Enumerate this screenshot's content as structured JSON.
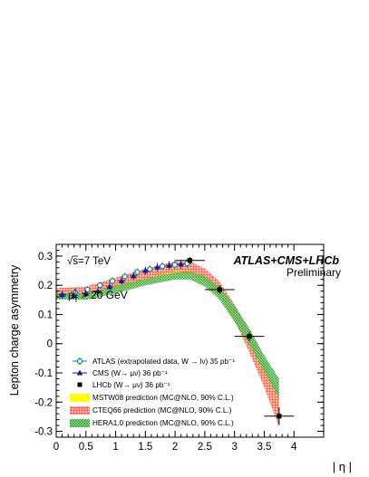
{
  "chart_data": {
    "type": "scatter",
    "title": "ATLAS+CMS+LHCb",
    "subtitle": "Preliminary",
    "energy_label": "√s=7 TeV",
    "cut_label": "p_T^l > 20 GeV",
    "cut_parts": {
      "p": "p",
      "sup": "l",
      "sub": "T",
      "rest": " > 20 GeV"
    },
    "ylabel": "Lepton charge asymmetry",
    "xlabel": "| η |",
    "xlim": [
      0,
      4.5
    ],
    "ylim": [
      -0.32,
      0.34
    ],
    "xticks": [
      "0",
      "0.5",
      "1",
      "1.5",
      "2",
      "2.5",
      "3",
      "3.5",
      "4"
    ],
    "xtick_values": [
      0,
      0.5,
      1,
      1.5,
      2,
      2.5,
      3,
      3.5,
      4
    ],
    "yticks": [
      "0.3",
      "0.2",
      "0.1",
      "0",
      "-0.1",
      "-0.2",
      "-0.3"
    ],
    "ytick_values": [
      0.3,
      0.2,
      0.1,
      0,
      -0.1,
      -0.2,
      -0.3
    ],
    "grid": false,
    "legend_position": "bottom-left",
    "colors": {
      "atlas": "#0f8a87",
      "cms": "#1b1b8f",
      "lhcb": "#000000",
      "mstw": "#ffff00",
      "cteq": "#ff3a2a",
      "hera": "#22aa22"
    },
    "series": [
      {
        "name": "ATLAS (extrapolated data, W → lν) 35 pb⁻¹",
        "marker": "open-circle",
        "x": [
          0.105,
          0.315,
          0.525,
          0.735,
          0.945,
          1.155,
          1.365,
          1.575,
          1.785,
          1.995,
          2.205
        ],
        "y": [
          0.165,
          0.175,
          0.185,
          0.2,
          0.215,
          0.23,
          0.245,
          0.255,
          0.265,
          0.27,
          0.275
        ],
        "err": [
          0.012,
          0.012,
          0.012,
          0.012,
          0.013,
          0.013,
          0.013,
          0.014,
          0.014,
          0.015,
          0.016
        ]
      },
      {
        "name": "CMS (W→ μν) 36 pb⁻¹",
        "marker": "filled-triangle",
        "x": [
          0.1,
          0.3,
          0.5,
          0.7,
          0.9,
          1.1,
          1.3,
          1.5,
          1.7,
          1.9,
          2.1
        ],
        "y": [
          0.168,
          0.165,
          0.172,
          0.18,
          0.195,
          0.215,
          0.232,
          0.25,
          0.262,
          0.268,
          0.272
        ],
        "err": [
          0.012,
          0.012,
          0.012,
          0.012,
          0.012,
          0.012,
          0.013,
          0.013,
          0.014,
          0.014,
          0.015
        ]
      },
      {
        "name": "LHCb (W→ μν) 36 pb⁻¹",
        "marker": "filled-square",
        "x": [
          2.25,
          2.75,
          3.25,
          3.75
        ],
        "y": [
          0.285,
          0.185,
          0.025,
          -0.248
        ],
        "xerr": [
          0.25,
          0.25,
          0.25,
          0.25
        ],
        "err": [
          0.012,
          0.014,
          0.016,
          0.03
        ]
      }
    ],
    "bands": [
      {
        "name": "MSTW08 prediction (MC@NLO, 90% C.L.)",
        "x": [
          0,
          0.5,
          1.0,
          1.5,
          2.0,
          2.25,
          2.5,
          2.75,
          3.0,
          3.25,
          3.5,
          3.75
        ],
        "upper": [
          0.18,
          0.182,
          0.208,
          0.236,
          0.262,
          0.262,
          0.238,
          0.192,
          0.115,
          0.025,
          -0.075,
          -0.2
        ],
        "lower": [
          0.156,
          0.155,
          0.18,
          0.212,
          0.238,
          0.236,
          0.208,
          0.16,
          0.078,
          -0.02,
          -0.125,
          -0.248
        ]
      },
      {
        "name": "CTEQ66 prediction (MC@NLO, 90% C.L.)",
        "x": [
          0,
          0.5,
          1.0,
          1.5,
          2.0,
          2.25,
          2.5,
          2.75,
          3.0,
          3.25,
          3.5,
          3.75
        ],
        "upper": [
          0.19,
          0.196,
          0.226,
          0.256,
          0.282,
          0.282,
          0.258,
          0.212,
          0.135,
          0.045,
          -0.06,
          -0.17
        ],
        "lower": [
          0.162,
          0.165,
          0.192,
          0.22,
          0.246,
          0.245,
          0.215,
          0.165,
          0.08,
          -0.03,
          -0.15,
          -0.285
        ]
      },
      {
        "name": "HERA1.0 prediction (MC@NLO, 90% C.L.)",
        "x": [
          0,
          0.5,
          1.0,
          1.5,
          2.0,
          2.25,
          2.5,
          2.75,
          3.0,
          3.25,
          3.5,
          3.75
        ],
        "upper": [
          0.172,
          0.172,
          0.198,
          0.222,
          0.244,
          0.246,
          0.232,
          0.196,
          0.13,
          0.052,
          -0.04,
          -0.12
        ],
        "lower": [
          0.152,
          0.15,
          0.172,
          0.2,
          0.22,
          0.22,
          0.196,
          0.15,
          0.075,
          -0.005,
          -0.095,
          -0.19
        ]
      }
    ]
  }
}
